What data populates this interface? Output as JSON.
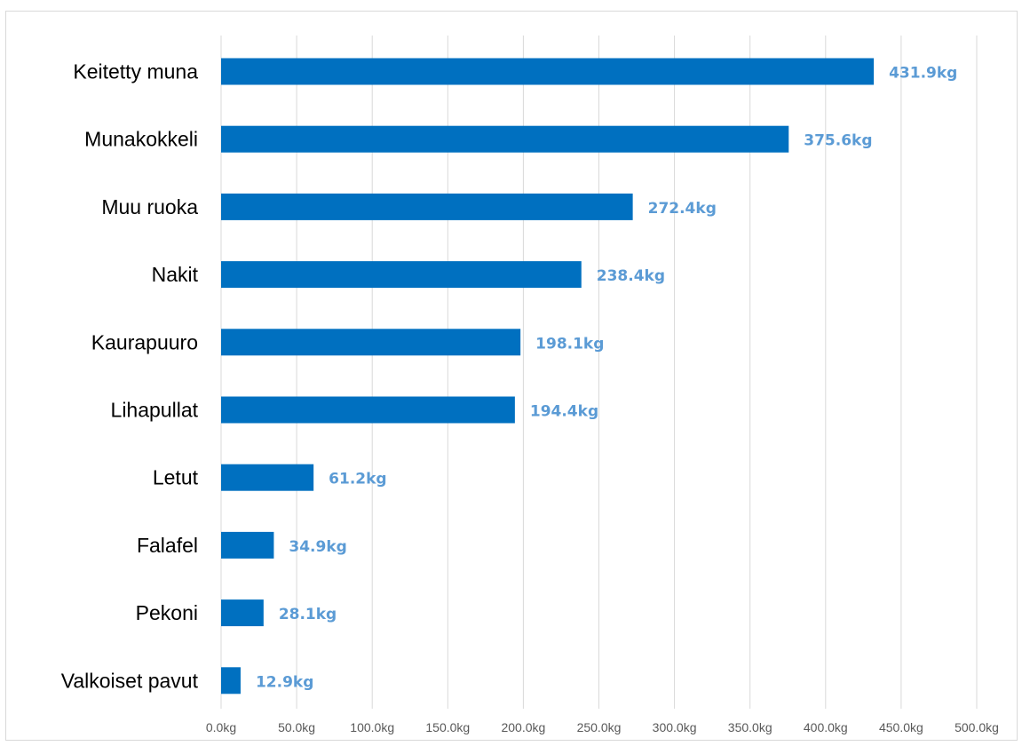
{
  "chart_data": {
    "type": "bar",
    "orientation": "horizontal",
    "categories": [
      "Keitetty muna",
      "Munakokkeli",
      "Muu ruoka",
      "Nakit",
      "Kaurapuuro",
      "Lihapullat",
      "Letut",
      "Falafel",
      "Pekoni",
      "Valkoiset pavut"
    ],
    "values": [
      431.9,
      375.6,
      272.4,
      238.4,
      198.1,
      194.4,
      61.2,
      34.9,
      28.1,
      12.9
    ],
    "value_labels": [
      "431.9kg",
      "375.6kg",
      "272.4kg",
      "238.4kg",
      "198.1kg",
      "194.4kg",
      "61.2kg",
      "34.9kg",
      "28.1kg",
      "12.9kg"
    ],
    "x_ticks": [
      "0.0kg",
      "50.0kg",
      "100.0kg",
      "150.0kg",
      "200.0kg",
      "250.0kg",
      "300.0kg",
      "350.0kg",
      "400.0kg",
      "450.0kg",
      "500.0kg"
    ],
    "xlim": [
      0,
      500
    ],
    "grid": "vertical",
    "bar_color": "#0070c0",
    "label_color": "#5b9bd5",
    "gridline_color": "#d9d9d9"
  }
}
